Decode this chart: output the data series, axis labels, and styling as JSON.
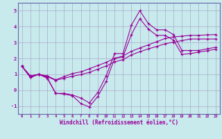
{
  "xlabel": "Windchill (Refroidissement éolien,°C)",
  "bg_color": "#c8eaed",
  "line_color": "#990099",
  "grid_color": "#aaaacc",
  "spine_color": "#6666aa",
  "xlim": [
    -0.5,
    23.5
  ],
  "ylim": [
    -1.5,
    5.5
  ],
  "xticks": [
    0,
    1,
    2,
    3,
    4,
    5,
    6,
    7,
    8,
    9,
    10,
    11,
    12,
    13,
    14,
    15,
    16,
    17,
    18,
    19,
    20,
    21,
    22,
    23
  ],
  "yticks": [
    -1,
    0,
    1,
    2,
    3,
    4,
    5
  ],
  "curves": [
    [
      1.5,
      0.8,
      1.0,
      0.8,
      -0.2,
      -0.2,
      -0.3,
      -0.5,
      -0.8,
      -0.15,
      0.9,
      2.3,
      2.3,
      4.1,
      5.0,
      4.2,
      3.8,
      3.8,
      3.5,
      2.5,
      2.5,
      2.5,
      2.6,
      2.7
    ],
    [
      1.5,
      0.8,
      1.0,
      0.75,
      -0.2,
      -0.25,
      -0.35,
      -0.85,
      -1.05,
      -0.4,
      0.55,
      2.0,
      2.1,
      3.5,
      4.5,
      3.85,
      3.45,
      3.45,
      3.15,
      2.25,
      2.3,
      2.4,
      2.48,
      2.58
    ],
    [
      1.5,
      0.9,
      1.0,
      0.9,
      0.65,
      0.85,
      1.05,
      1.15,
      1.35,
      1.55,
      1.75,
      2.0,
      2.15,
      2.45,
      2.65,
      2.85,
      3.05,
      3.25,
      3.35,
      3.4,
      3.45,
      3.45,
      3.48,
      3.5
    ],
    [
      1.5,
      0.88,
      1.0,
      0.85,
      0.62,
      0.75,
      0.88,
      0.98,
      1.12,
      1.32,
      1.52,
      1.78,
      1.92,
      2.22,
      2.42,
      2.6,
      2.75,
      2.92,
      3.02,
      3.12,
      3.22,
      3.22,
      3.22,
      3.22
    ]
  ]
}
